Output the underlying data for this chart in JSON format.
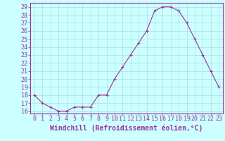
{
  "x": [
    0,
    1,
    2,
    3,
    4,
    5,
    6,
    7,
    8,
    9,
    10,
    11,
    12,
    13,
    14,
    15,
    16,
    17,
    18,
    19,
    20,
    21,
    22,
    23
  ],
  "y": [
    18,
    17,
    16.5,
    16,
    16,
    16.5,
    16.5,
    16.5,
    18,
    18,
    20,
    21.5,
    23,
    24.5,
    26,
    28.5,
    29,
    29,
    28.5,
    27,
    25,
    23,
    21,
    19
  ],
  "line_color": "#993399",
  "marker": "+",
  "bg_color": "#ccffff",
  "grid_color": "#aadddd",
  "xlabel": "Windchill (Refroidissement éolien,°C)",
  "xlabel_color": "#993399",
  "tick_color": "#993399",
  "label_color": "#993399",
  "ylim": [
    15.7,
    29.5
  ],
  "xlim": [
    -0.5,
    23.5
  ],
  "yticks": [
    16,
    17,
    18,
    19,
    20,
    21,
    22,
    23,
    24,
    25,
    26,
    27,
    28,
    29
  ],
  "xticks": [
    0,
    1,
    2,
    3,
    4,
    5,
    6,
    7,
    8,
    9,
    10,
    11,
    12,
    13,
    14,
    15,
    16,
    17,
    18,
    19,
    20,
    21,
    22,
    23
  ],
  "tick_fontsize": 6,
  "xlabel_fontsize": 7
}
